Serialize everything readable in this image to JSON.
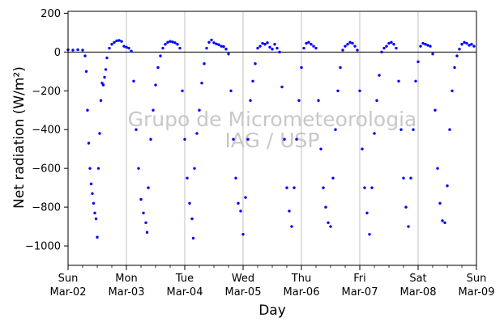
{
  "chart_data": {
    "type": "scatter",
    "title": "",
    "xlabel": "Day",
    "ylabel": "Net radiation (W/m²)",
    "ylim": [
      -1100,
      210
    ],
    "xlim": [
      "2025-03-02",
      "2025-03-09"
    ],
    "yticks": [
      200,
      0,
      -200,
      -400,
      -600,
      -800,
      -1000
    ],
    "xticks": [
      {
        "x": "2025-03-02",
        "day": "Sun",
        "date": "Mar-02"
      },
      {
        "x": "2025-03-03",
        "day": "Mon",
        "date": "Mar-03"
      },
      {
        "x": "2025-03-04",
        "day": "Tue",
        "date": "Mar-04"
      },
      {
        "x": "2025-03-05",
        "day": "Wed",
        "date": "Mar-05"
      },
      {
        "x": "2025-03-06",
        "day": "Thu",
        "date": "Mar-06"
      },
      {
        "x": "2025-03-07",
        "day": "Fri",
        "date": "Mar-07"
      },
      {
        "x": "2025-03-08",
        "day": "Sat",
        "date": "Mar-08"
      },
      {
        "x": "2025-03-09",
        "day": "Sun",
        "date": "Mar-09"
      }
    ],
    "grid": "vertical",
    "zero_line": 0,
    "watermark": [
      "Grupo de Micrometeorologia",
      "IAG / USP"
    ],
    "marker_color": "#0000ff",
    "series": [
      {
        "values": [
          [
            "2025-03-02 00:00",
            12
          ],
          [
            "2025-03-02 02:00",
            10
          ],
          [
            "2025-03-02 04:00",
            12
          ],
          [
            "2025-03-02 06:00",
            10
          ],
          [
            "2025-03-02 07:00",
            -20
          ],
          [
            "2025-03-02 07:30",
            -100
          ],
          [
            "2025-03-02 08:00",
            -300
          ],
          [
            "2025-03-02 08:30",
            -470
          ],
          [
            "2025-03-02 09:00",
            -600
          ],
          [
            "2025-03-02 09:30",
            -680
          ],
          [
            "2025-03-02 10:00",
            -730
          ],
          [
            "2025-03-02 10:30",
            -780
          ],
          [
            "2025-03-02 11:00",
            -830
          ],
          [
            "2025-03-02 11:30",
            -860
          ],
          [
            "2025-03-02 12:00",
            -955
          ],
          [
            "2025-03-02 12:30",
            -600
          ],
          [
            "2025-03-02 13:00",
            -420
          ],
          [
            "2025-03-02 13:30",
            -250
          ],
          [
            "2025-03-02 14:00",
            -160
          ],
          [
            "2025-03-02 14:30",
            -170
          ],
          [
            "2025-03-02 15:00",
            -130
          ],
          [
            "2025-03-02 15:30",
            -90
          ],
          [
            "2025-03-02 16:00",
            -30
          ],
          [
            "2025-03-02 17:00",
            20
          ],
          [
            "2025-03-02 18:00",
            40
          ],
          [
            "2025-03-02 19:00",
            50
          ],
          [
            "2025-03-02 20:00",
            58
          ],
          [
            "2025-03-02 21:00",
            60
          ],
          [
            "2025-03-02 22:00",
            55
          ],
          [
            "2025-03-02 23:00",
            30
          ],
          [
            "2025-03-03 00:00",
            25
          ],
          [
            "2025-03-03 01:00",
            20
          ],
          [
            "2025-03-03 02:00",
            5
          ],
          [
            "2025-03-03 03:00",
            -150
          ],
          [
            "2025-03-03 04:00",
            -400
          ],
          [
            "2025-03-03 05:00",
            -600
          ],
          [
            "2025-03-03 06:00",
            -760
          ],
          [
            "2025-03-03 07:00",
            -830
          ],
          [
            "2025-03-03 08:00",
            -880
          ],
          [
            "2025-03-03 08:30",
            -930
          ],
          [
            "2025-03-03 09:00",
            -700
          ],
          [
            "2025-03-03 10:00",
            -450
          ],
          [
            "2025-03-03 11:00",
            -300
          ],
          [
            "2025-03-03 12:00",
            -170
          ],
          [
            "2025-03-03 13:00",
            -80
          ],
          [
            "2025-03-03 14:00",
            -20
          ],
          [
            "2025-03-03 15:00",
            20
          ],
          [
            "2025-03-03 16:00",
            40
          ],
          [
            "2025-03-03 17:00",
            50
          ],
          [
            "2025-03-03 18:00",
            55
          ],
          [
            "2025-03-03 19:00",
            52
          ],
          [
            "2025-03-03 20:00",
            48
          ],
          [
            "2025-03-03 21:00",
            40
          ],
          [
            "2025-03-03 22:00",
            20
          ],
          [
            "2025-03-03 23:00",
            -200
          ],
          [
            "2025-03-04 00:00",
            -450
          ],
          [
            "2025-03-04 01:00",
            -650
          ],
          [
            "2025-03-04 02:00",
            -780
          ],
          [
            "2025-03-04 03:00",
            -860
          ],
          [
            "2025-03-04 03:30",
            -960
          ],
          [
            "2025-03-04 04:00",
            -600
          ],
          [
            "2025-03-04 05:00",
            -420
          ],
          [
            "2025-03-04 06:00",
            -300
          ],
          [
            "2025-03-04 07:00",
            -160
          ],
          [
            "2025-03-04 08:00",
            -60
          ],
          [
            "2025-03-04 09:00",
            20
          ],
          [
            "2025-03-04 10:00",
            50
          ],
          [
            "2025-03-04 11:00",
            62
          ],
          [
            "2025-03-04 12:00",
            48
          ],
          [
            "2025-03-04 13:00",
            42
          ],
          [
            "2025-03-04 14:00",
            38
          ],
          [
            "2025-03-04 15:00",
            30
          ],
          [
            "2025-03-04 16:00",
            28
          ],
          [
            "2025-03-04 17:00",
            15
          ],
          [
            "2025-03-04 18:00",
            -10
          ],
          [
            "2025-03-04 19:00",
            -200
          ],
          [
            "2025-03-04 20:00",
            -450
          ],
          [
            "2025-03-04 21:00",
            -650
          ],
          [
            "2025-03-04 22:00",
            -780
          ],
          [
            "2025-03-04 23:00",
            -820
          ],
          [
            "2025-03-05 00:00",
            -940
          ],
          [
            "2025-03-05 01:00",
            -750
          ],
          [
            "2025-03-05 02:00",
            -450
          ],
          [
            "2025-03-05 03:00",
            -250
          ],
          [
            "2025-03-05 04:00",
            -150
          ],
          [
            "2025-03-05 05:00",
            -60
          ],
          [
            "2025-03-05 06:00",
            20
          ],
          [
            "2025-03-05 07:00",
            30
          ],
          [
            "2025-03-05 08:00",
            45
          ],
          [
            "2025-03-05 09:00",
            40
          ],
          [
            "2025-03-05 10:00",
            48
          ],
          [
            "2025-03-05 11:00",
            25
          ],
          [
            "2025-03-05 12:00",
            15
          ],
          [
            "2025-03-05 13:00",
            40
          ],
          [
            "2025-03-05 14:00",
            20
          ],
          [
            "2025-03-05 15:00",
            0
          ],
          [
            "2025-03-05 16:00",
            -180
          ],
          [
            "2025-03-05 17:00",
            -450
          ],
          [
            "2025-03-05 18:00",
            -700
          ],
          [
            "2025-03-05 19:00",
            -820
          ],
          [
            "2025-03-05 20:00",
            -900
          ],
          [
            "2025-03-05 21:00",
            -700
          ],
          [
            "2025-03-05 22:00",
            -450
          ],
          [
            "2025-03-05 23:00",
            -250
          ],
          [
            "2025-03-06 00:00",
            -80
          ],
          [
            "2025-03-06 01:00",
            20
          ],
          [
            "2025-03-06 02:00",
            45
          ],
          [
            "2025-03-06 03:00",
            50
          ],
          [
            "2025-03-06 04:00",
            40
          ],
          [
            "2025-03-06 05:00",
            30
          ],
          [
            "2025-03-06 06:00",
            20
          ],
          [
            "2025-03-06 07:00",
            -250
          ],
          [
            "2025-03-06 08:00",
            -500
          ],
          [
            "2025-03-06 09:00",
            -700
          ],
          [
            "2025-03-06 10:00",
            -800
          ],
          [
            "2025-03-06 11:00",
            -880
          ],
          [
            "2025-03-06 12:00",
            -900
          ],
          [
            "2025-03-06 13:00",
            -650
          ],
          [
            "2025-03-06 14:00",
            -400
          ],
          [
            "2025-03-06 15:00",
            -200
          ],
          [
            "2025-03-06 16:00",
            -80
          ],
          [
            "2025-03-06 17:00",
            10
          ],
          [
            "2025-03-06 18:00",
            30
          ],
          [
            "2025-03-06 19:00",
            40
          ],
          [
            "2025-03-06 20:00",
            50
          ],
          [
            "2025-03-06 21:00",
            45
          ],
          [
            "2025-03-06 22:00",
            30
          ],
          [
            "2025-03-06 23:00",
            10
          ],
          [
            "2025-03-07 00:00",
            -200
          ],
          [
            "2025-03-07 01:00",
            -500
          ],
          [
            "2025-03-07 02:00",
            -700
          ],
          [
            "2025-03-07 03:00",
            -830
          ],
          [
            "2025-03-07 04:00",
            -940
          ],
          [
            "2025-03-07 05:00",
            -700
          ],
          [
            "2025-03-07 06:00",
            -420
          ],
          [
            "2025-03-07 07:00",
            -250
          ],
          [
            "2025-03-07 08:00",
            -120
          ],
          [
            "2025-03-07 09:00",
            0
          ],
          [
            "2025-03-07 10:00",
            20
          ],
          [
            "2025-03-07 11:00",
            30
          ],
          [
            "2025-03-07 12:00",
            45
          ],
          [
            "2025-03-07 13:00",
            50
          ],
          [
            "2025-03-07 14:00",
            40
          ],
          [
            "2025-03-07 15:00",
            20
          ],
          [
            "2025-03-07 16:00",
            -150
          ],
          [
            "2025-03-07 17:00",
            -400
          ],
          [
            "2025-03-07 18:00",
            -650
          ],
          [
            "2025-03-07 19:00",
            -800
          ],
          [
            "2025-03-07 20:00",
            -900
          ],
          [
            "2025-03-07 21:00",
            -650
          ],
          [
            "2025-03-07 22:00",
            -400
          ],
          [
            "2025-03-07 23:00",
            -150
          ],
          [
            "2025-03-08 00:00",
            -50
          ],
          [
            "2025-03-08 01:00",
            30
          ],
          [
            "2025-03-08 02:00",
            45
          ],
          [
            "2025-03-08 03:00",
            40
          ],
          [
            "2025-03-08 04:00",
            35
          ],
          [
            "2025-03-08 05:00",
            30
          ],
          [
            "2025-03-08 06:00",
            -10
          ],
          [
            "2025-03-08 07:00",
            -300
          ],
          [
            "2025-03-08 08:00",
            -600
          ],
          [
            "2025-03-08 09:00",
            -780
          ],
          [
            "2025-03-08 10:00",
            -870
          ],
          [
            "2025-03-08 11:00",
            -880
          ],
          [
            "2025-03-08 12:00",
            -690
          ],
          [
            "2025-03-08 13:00",
            -400
          ],
          [
            "2025-03-08 14:00",
            -200
          ],
          [
            "2025-03-08 15:00",
            -80
          ],
          [
            "2025-03-08 16:00",
            -20
          ],
          [
            "2025-03-08 17:00",
            15
          ],
          [
            "2025-03-08 18:00",
            40
          ],
          [
            "2025-03-08 19:00",
            50
          ],
          [
            "2025-03-08 20:00",
            45
          ],
          [
            "2025-03-08 21:00",
            35
          ],
          [
            "2025-03-08 22:00",
            40
          ],
          [
            "2025-03-08 23:00",
            30
          ]
        ]
      }
    ]
  }
}
